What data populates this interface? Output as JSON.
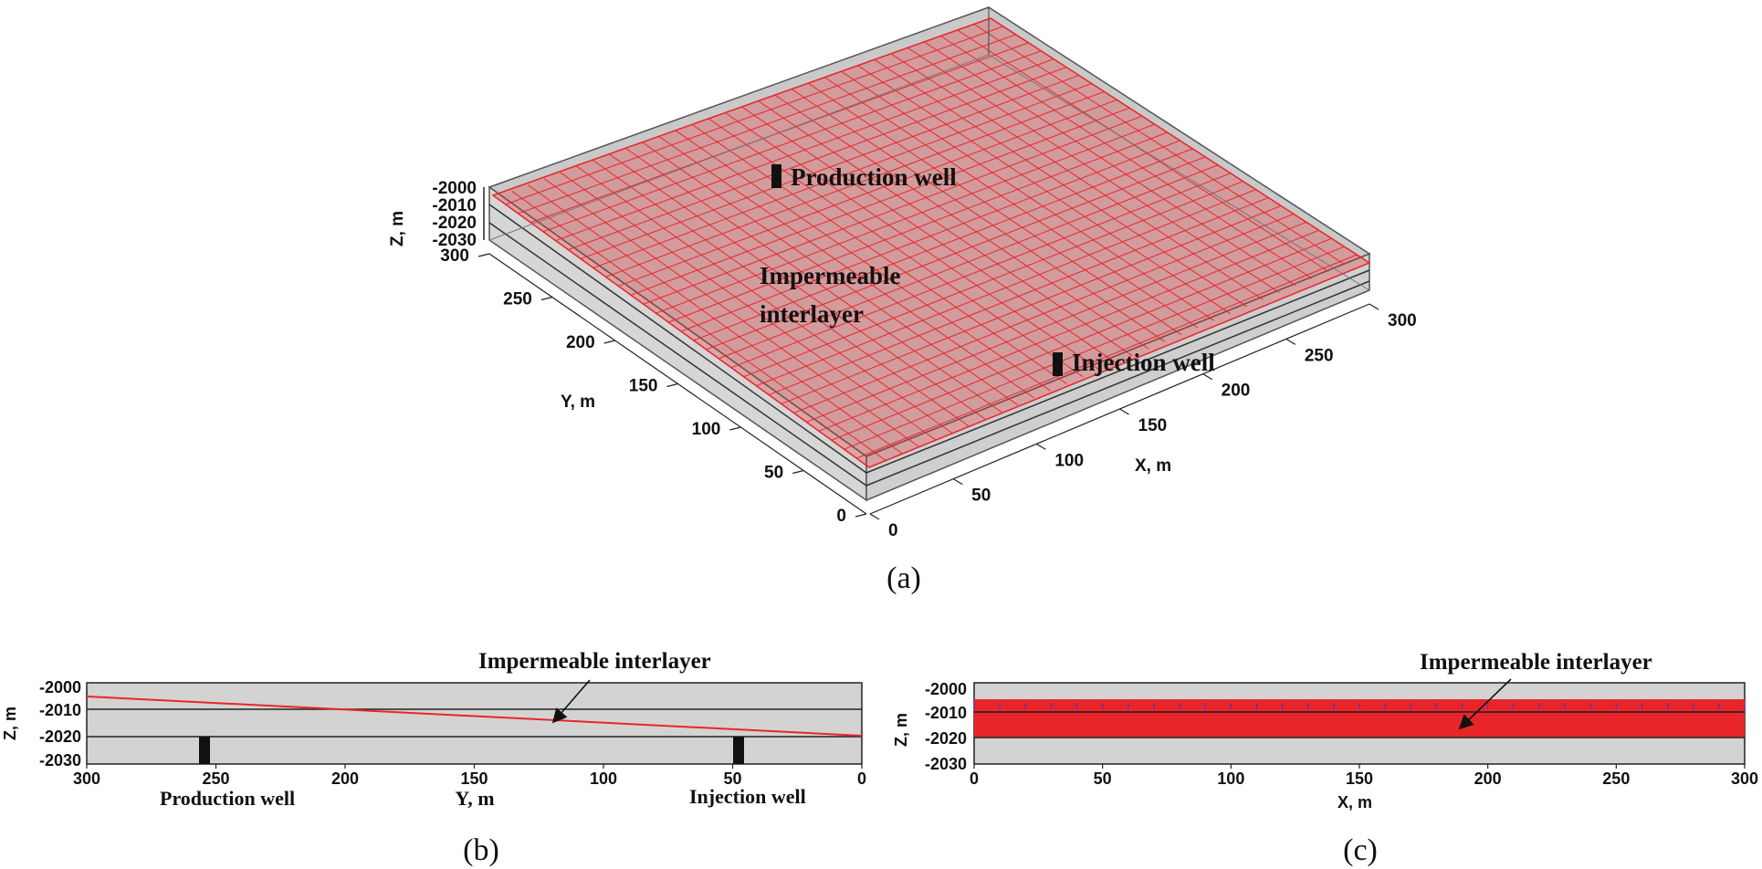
{
  "panel_a": {
    "caption": "(a)",
    "z_axis_label": "Z, m",
    "y_axis_label": "Y, m",
    "x_axis_label": "X, m",
    "z_ticks": [
      "-2000",
      "-2010",
      "-2020",
      "-2030"
    ],
    "y_ticks": [
      "300",
      "250",
      "200",
      "150",
      "100",
      "50",
      "0"
    ],
    "x_ticks": [
      "0",
      "50",
      "100",
      "150",
      "200",
      "250",
      "300"
    ],
    "label_production": "Production well",
    "label_injection": "Injection well",
    "label_interlayer_1": "Impermeable",
    "label_interlayer_2": "interlayer"
  },
  "panel_b": {
    "caption": "(b)",
    "z_axis_label": "Z, m",
    "x_axis_label": "Y, m",
    "z_ticks": [
      "-2000",
      "-2010",
      "-2020",
      "-2030"
    ],
    "x_ticks": [
      "300",
      "250",
      "200",
      "150",
      "100",
      "50",
      "0"
    ],
    "label_production": "Production well",
    "label_injection": "Injection well",
    "label_interlayer": "Impermeable interlayer"
  },
  "panel_c": {
    "caption": "(c)",
    "z_axis_label": "Z, m",
    "x_axis_label": "X, m",
    "z_ticks": [
      "-2000",
      "-2010",
      "-2020",
      "-2030"
    ],
    "x_ticks": [
      "0",
      "50",
      "100",
      "150",
      "200",
      "250",
      "300"
    ],
    "label_interlayer": "Impermeable interlayer"
  },
  "colors": {
    "interlayer_red": "#e8262a",
    "box_gray": "#d3d3d3",
    "outline": "#222222"
  }
}
